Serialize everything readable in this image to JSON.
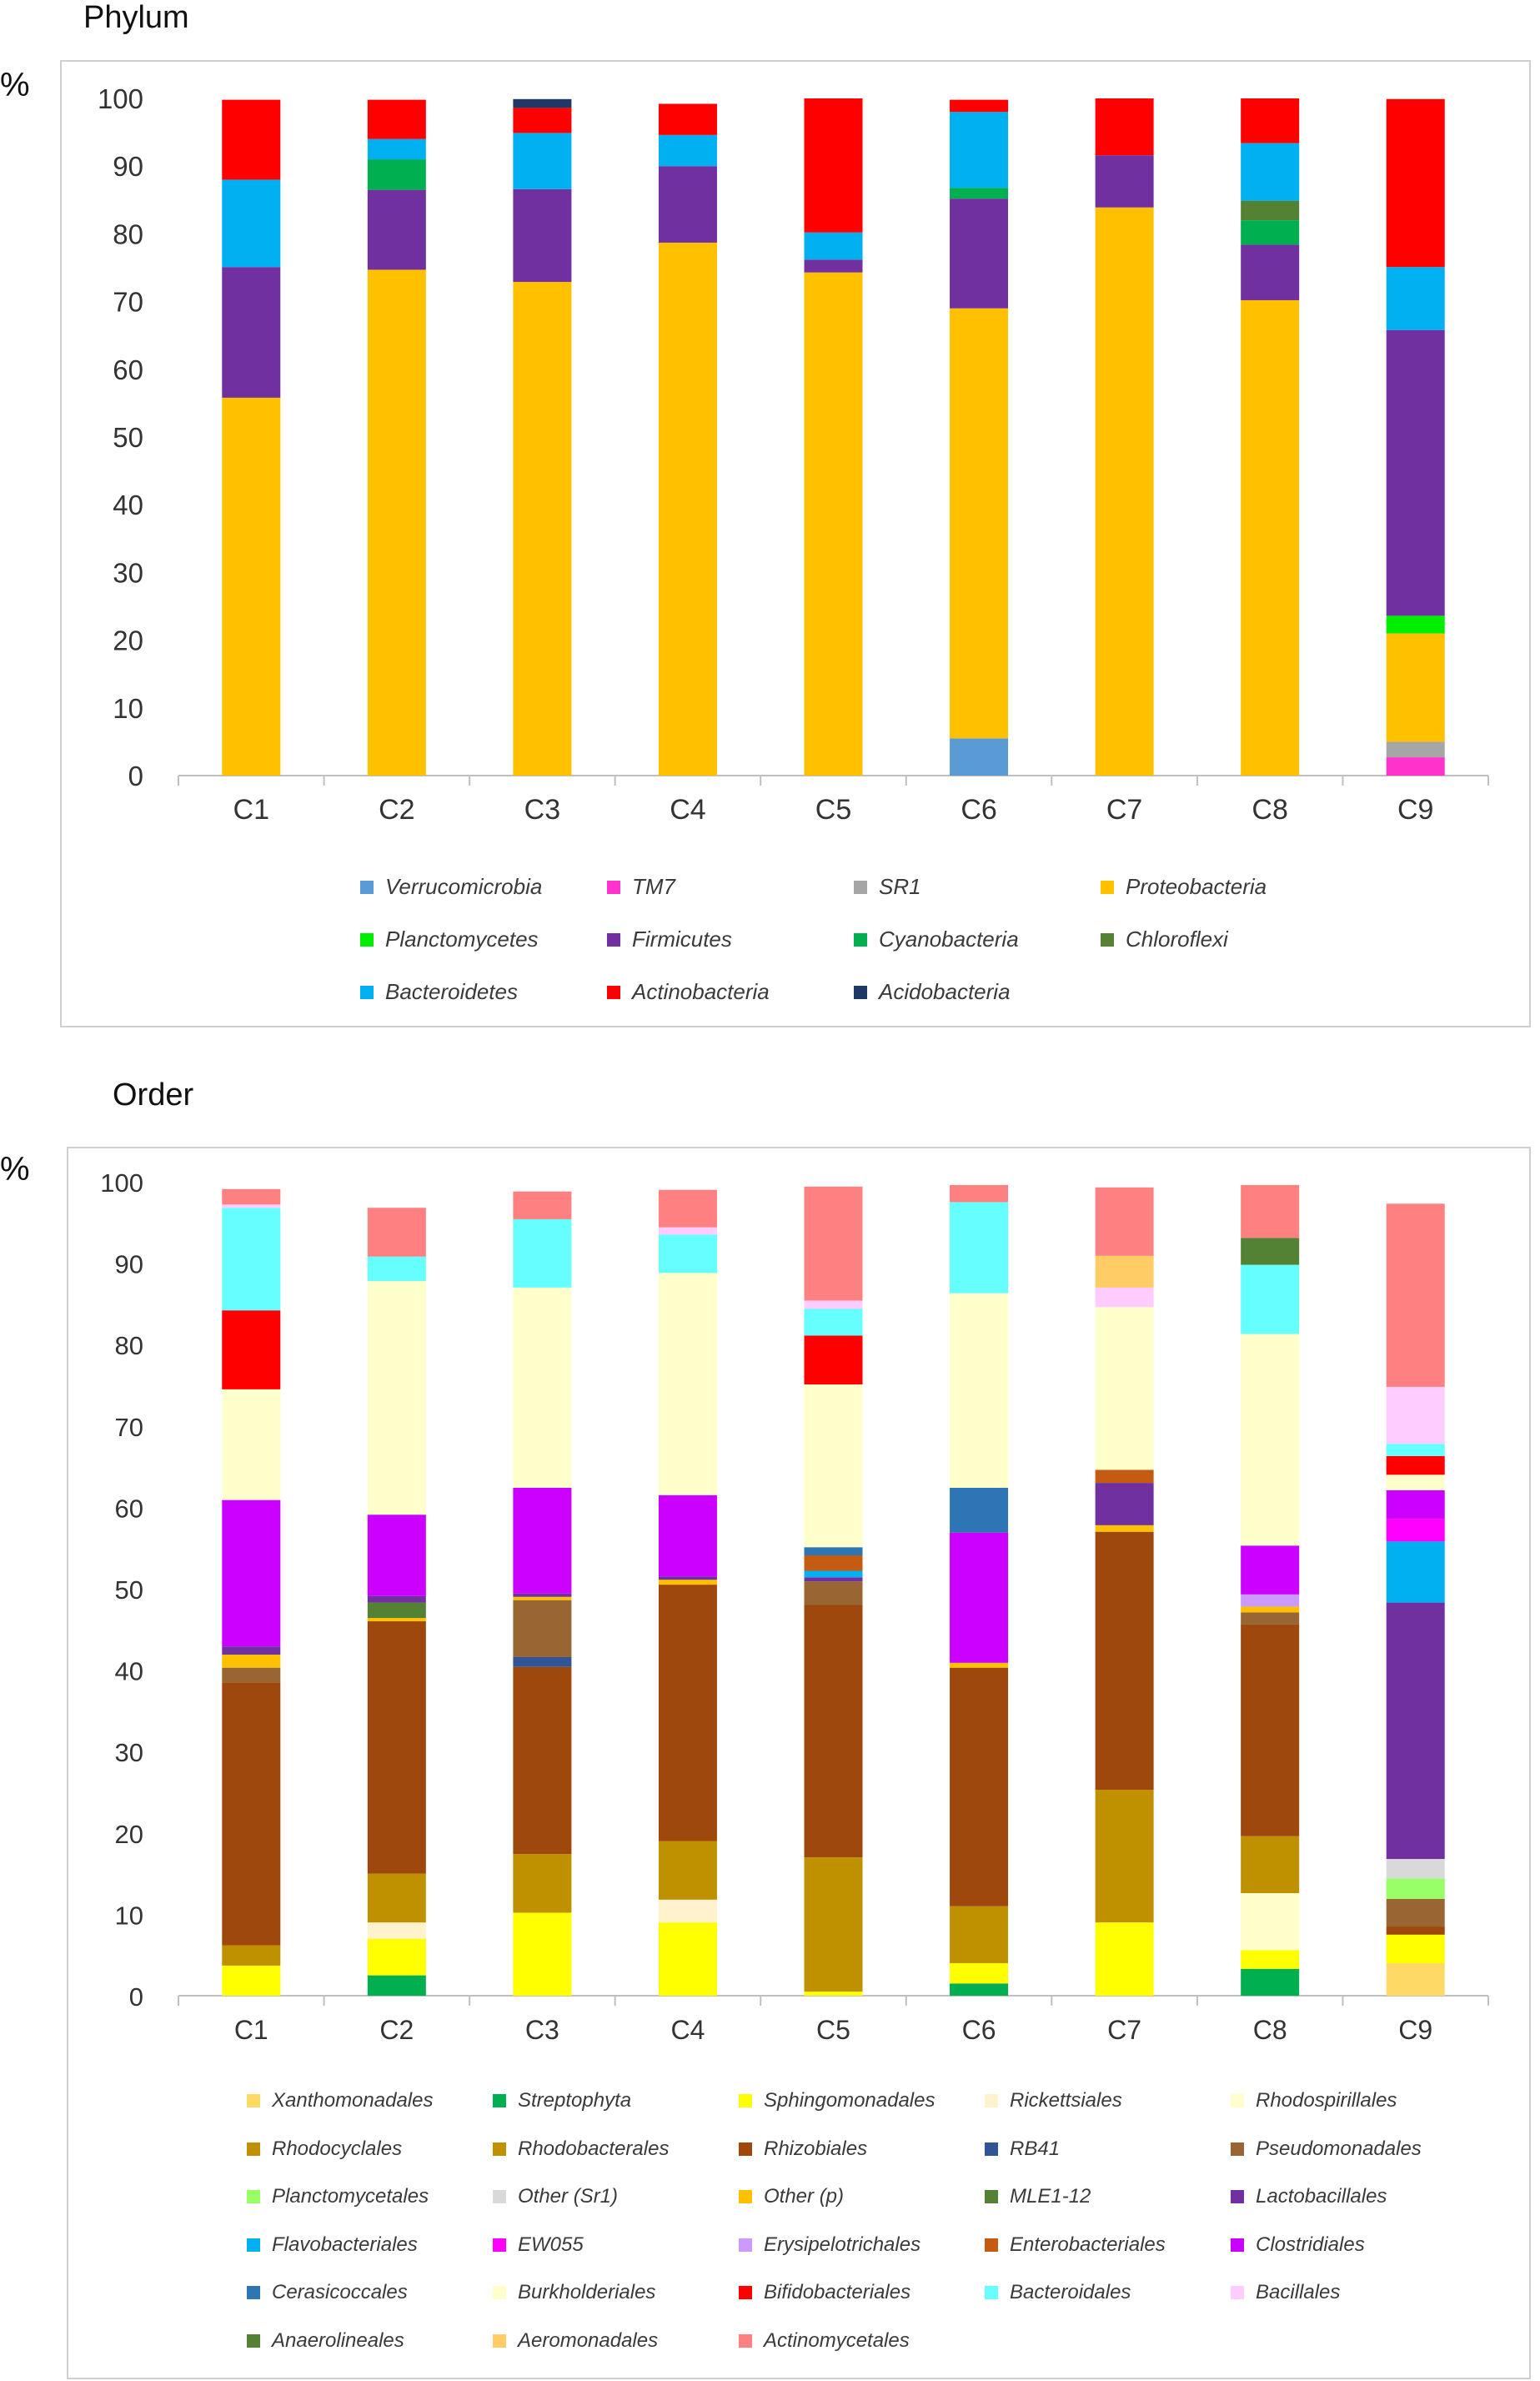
{
  "chart_data": [
    {
      "type": "bar",
      "stacked": true,
      "title": "Phylum",
      "ylabel": "%",
      "xlabel": "",
      "ylim": [
        0,
        100
      ],
      "yticks": [
        "0",
        "10",
        "20",
        "30",
        "40",
        "50",
        "60",
        "70",
        "80",
        "90",
        "100"
      ],
      "categories": [
        "C1",
        "C2",
        "C3",
        "C4",
        "C5",
        "C6",
        "C7",
        "C8",
        "C9"
      ],
      "legend_position": "bottom",
      "series": [
        {
          "name": "Verrucomicrobia",
          "color": "#5b9bd5",
          "values": [
            0,
            0,
            0,
            0,
            0,
            5.5,
            0,
            0,
            0
          ]
        },
        {
          "name": "TM7",
          "color": "#ff33cc",
          "values": [
            0,
            0,
            0,
            0,
            0,
            0,
            0,
            0,
            2.7
          ]
        },
        {
          "name": "SR1",
          "color": "#a6a6a6",
          "values": [
            0,
            0,
            0,
            0,
            0,
            0,
            0,
            0,
            2.3
          ]
        },
        {
          "name": "Proteobacteria",
          "color": "#ffc000",
          "values": [
            55.8,
            74.7,
            72.9,
            78.7,
            74.3,
            63.5,
            83.9,
            70.2,
            16.0
          ]
        },
        {
          "name": "Planctomycetes",
          "color": "#00ee00",
          "values": [
            0,
            0,
            0,
            0,
            0,
            0,
            0,
            0,
            2.6
          ]
        },
        {
          "name": "Firmicutes",
          "color": "#7030a0",
          "values": [
            19.3,
            11.8,
            13.7,
            11.3,
            1.9,
            16.2,
            7.7,
            8.2,
            42.2
          ]
        },
        {
          "name": "Cyanobacteria",
          "color": "#00b050",
          "values": [
            0,
            4.5,
            0,
            0,
            0,
            1.6,
            0,
            3.6,
            0
          ]
        },
        {
          "name": "Chloroflexi",
          "color": "#548235",
          "values": [
            0,
            0,
            0,
            0,
            0,
            0,
            0,
            2.9,
            0
          ]
        },
        {
          "name": "Bacteroidetes",
          "color": "#00b0f0",
          "values": [
            12.9,
            3.0,
            8.3,
            4.6,
            4.0,
            11.2,
            0,
            8.5,
            9.3
          ]
        },
        {
          "name": "Actinobacteria",
          "color": "#ff0000",
          "values": [
            11.8,
            5.8,
            3.7,
            4.6,
            19.8,
            1.8,
            8.4,
            6.6,
            24.8
          ]
        },
        {
          "name": "Acidobacteria",
          "color": "#203864",
          "values": [
            0,
            0,
            1.3,
            0,
            0,
            0,
            0,
            0,
            0
          ]
        }
      ]
    },
    {
      "type": "bar",
      "stacked": true,
      "title": "Order",
      "ylabel": "%",
      "xlabel": "",
      "ylim": [
        0,
        100
      ],
      "yticks": [
        "0",
        "10",
        "20",
        "30",
        "40",
        "50",
        "60",
        "70",
        "80",
        "90",
        "100"
      ],
      "categories": [
        "C1",
        "C2",
        "C3",
        "C4",
        "C5",
        "C6",
        "C7",
        "C8",
        "C9"
      ],
      "legend_position": "bottom",
      "series": [
        {
          "name": "Xanthomonadales",
          "color": "#ffd966",
          "values": [
            0,
            0,
            0,
            0,
            0,
            0,
            0,
            0,
            4.0
          ]
        },
        {
          "name": "Streptophyta",
          "color": "#00b050",
          "values": [
            0,
            2.5,
            0,
            0,
            0,
            1.5,
            0,
            3.3,
            0
          ]
        },
        {
          "name": "Sphingomonadales",
          "color": "#ffff00",
          "values": [
            3.7,
            4.5,
            10.2,
            9.0,
            0.5,
            2.5,
            9.0,
            2.3,
            3.5
          ]
        },
        {
          "name": "Rickettsiales",
          "color": "#fff2cc",
          "values": [
            0,
            2.0,
            0,
            2.8,
            0,
            0,
            0,
            0,
            0
          ]
        },
        {
          "name": "Rhodospirillales",
          "color": "#ffffcc",
          "values": [
            0,
            0,
            0,
            0,
            0,
            0,
            0,
            7.0,
            0
          ]
        },
        {
          "name": "Rhodocyclales",
          "color": "#bf9000",
          "values": [
            0,
            0,
            0,
            0,
            0,
            0,
            0,
            0,
            0
          ]
        },
        {
          "name": "Rhodobacterales",
          "color": "#bf9000",
          "values": [
            2.5,
            6.0,
            7.2,
            7.2,
            16.5,
            7.0,
            16.3,
            7.0,
            0
          ]
        },
        {
          "name": "Rhizobiales",
          "color": "#9e480e",
          "values": [
            32.3,
            31.0,
            23.0,
            31.5,
            31.0,
            29.3,
            31.7,
            26.0,
            1.0
          ]
        },
        {
          "name": "RB41",
          "color": "#2f5597",
          "values": [
            0,
            0,
            1.2,
            0,
            0,
            0,
            0,
            0,
            0
          ]
        },
        {
          "name": "Pseudomonadales",
          "color": "#996633",
          "values": [
            1.8,
            0,
            7.0,
            0,
            2.9,
            0,
            0,
            1.5,
            3.4
          ]
        },
        {
          "name": "Planctomycetales",
          "color": "#99ff66",
          "values": [
            0,
            0,
            0,
            0,
            0,
            0,
            0,
            0,
            2.5
          ]
        },
        {
          "name": "Other (Sr1)",
          "color": "#d9d9d9",
          "values": [
            0,
            0,
            0,
            0,
            0,
            0,
            0,
            0,
            2.4
          ]
        },
        {
          "name": "Other (p)",
          "color": "#ffc000",
          "values": [
            1.6,
            0.4,
            0.4,
            0.6,
            0,
            0.6,
            0.8,
            0.7,
            0
          ]
        },
        {
          "name": "MLE1-12",
          "color": "#548235",
          "values": [
            0,
            1.9,
            0,
            0,
            0,
            0,
            0,
            0,
            0
          ]
        },
        {
          "name": "Lactobacillales",
          "color": "#7030a0",
          "values": [
            1.0,
            0.8,
            0.4,
            0.4,
            0.5,
            0,
            5.2,
            0,
            31.5
          ]
        },
        {
          "name": "Flavobacteriales",
          "color": "#00b0f0",
          "values": [
            0,
            0,
            0,
            0,
            0.8,
            0,
            0,
            0,
            7.5
          ]
        },
        {
          "name": "EW055",
          "color": "#ff00ff",
          "values": [
            0,
            0,
            0,
            0,
            0,
            0,
            0,
            0,
            2.8
          ]
        },
        {
          "name": "Erysipelotrichales",
          "color": "#cc99ff",
          "values": [
            0,
            0,
            0,
            0,
            0,
            0,
            0,
            1.5,
            0
          ]
        },
        {
          "name": "Enterobacteriales",
          "color": "#c55a11",
          "values": [
            0,
            0,
            0,
            0,
            1.9,
            0,
            1.6,
            0,
            0
          ]
        },
        {
          "name": "Clostridiales",
          "color": "#cc00ff",
          "values": [
            18.0,
            10.0,
            13.0,
            10.0,
            0,
            16.0,
            0,
            6.0,
            3.5
          ]
        },
        {
          "name": "Cerasicoccales",
          "color": "#2e75b6",
          "values": [
            0,
            0,
            0,
            0,
            1.0,
            5.5,
            0,
            0,
            0
          ]
        },
        {
          "name": "Burkholderiales",
          "color": "#ffffcc",
          "values": [
            13.6,
            28.7,
            24.6,
            27.3,
            20.0,
            23.9,
            20.0,
            26.0,
            1.9
          ]
        },
        {
          "name": "Bifidobacteriales",
          "color": "#ff0000",
          "values": [
            9.7,
            0,
            0,
            0,
            6.0,
            0,
            0,
            0,
            2.3
          ]
        },
        {
          "name": "Bacteroidales",
          "color": "#66ffff",
          "values": [
            12.6,
            3.0,
            8.4,
            4.7,
            3.3,
            11.2,
            0,
            8.5,
            1.5
          ]
        },
        {
          "name": "Bacillales",
          "color": "#ffccff",
          "values": [
            0.4,
            0,
            0,
            0.9,
            1.0,
            0,
            2.4,
            0,
            7.0
          ]
        },
        {
          "name": "Anaerolineales",
          "color": "#548235",
          "values": [
            0,
            0,
            0,
            0,
            0,
            0,
            0,
            3.3,
            0
          ]
        },
        {
          "name": "Aeromonadales",
          "color": "#ffcc66",
          "values": [
            0,
            0,
            0,
            0,
            0,
            0,
            3.9,
            0,
            0
          ]
        },
        {
          "name": "Actinomycetales",
          "color": "#ff8080",
          "values": [
            1.9,
            6.0,
            3.4,
            4.6,
            14.0,
            2.1,
            8.4,
            6.5,
            22.5
          ]
        }
      ]
    }
  ]
}
